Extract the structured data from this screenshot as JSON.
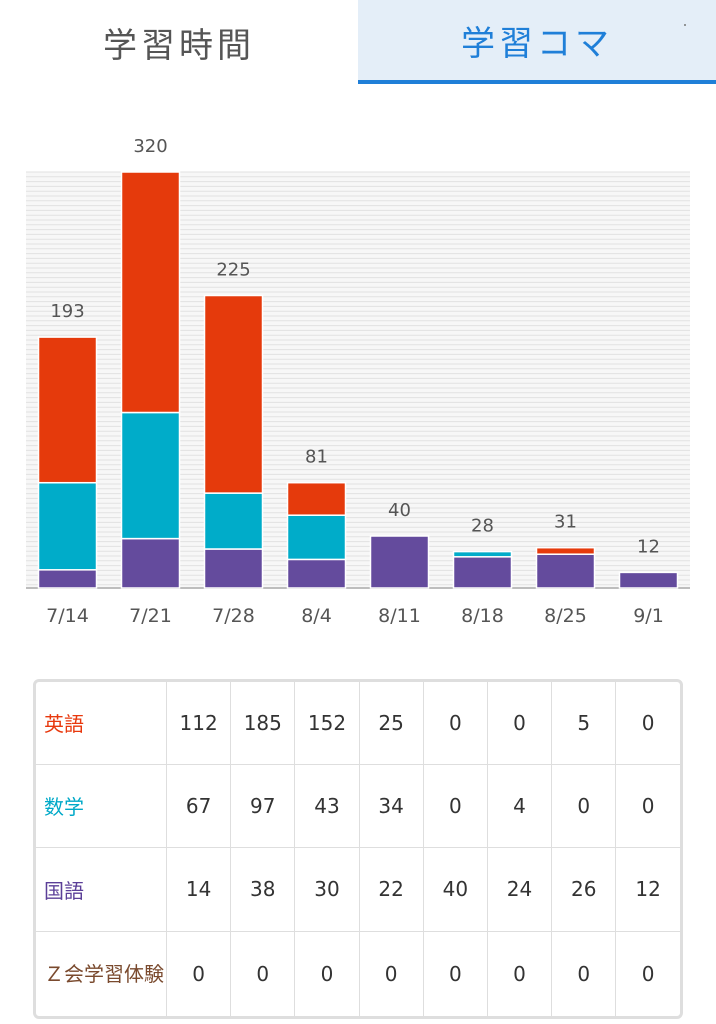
{
  "tabs": [
    {
      "label": "学習時間",
      "active": false
    },
    {
      "label": "学習コマ",
      "active": true
    }
  ],
  "colors": {
    "english": "#e53a0c",
    "math": "#00acc9",
    "japanese": "#644b9d",
    "accent": "#1f7fd8"
  },
  "chart_data": {
    "type": "bar",
    "stacked": true,
    "categories": [
      "7/14",
      "7/21",
      "7/28",
      "8/4",
      "8/11",
      "8/18",
      "8/25",
      "9/1"
    ],
    "totals": [
      193,
      320,
      225,
      81,
      40,
      28,
      31,
      12
    ],
    "series": [
      {
        "name": "国語",
        "color": "#644b9d",
        "values": [
          14,
          38,
          30,
          22,
          40,
          24,
          26,
          12
        ]
      },
      {
        "name": "数学",
        "color": "#00acc9",
        "values": [
          67,
          97,
          43,
          34,
          0,
          4,
          0,
          0
        ]
      },
      {
        "name": "英語",
        "color": "#e53a0c",
        "values": [
          112,
          185,
          152,
          25,
          0,
          0,
          5,
          0
        ]
      },
      {
        "name": "Ｚ会学習体験",
        "color": "#8a5a3a",
        "values": [
          0,
          0,
          0,
          0,
          0,
          0,
          0,
          0
        ]
      }
    ],
    "ylim": [
      0,
      320
    ],
    "grid": true,
    "legend": "none"
  },
  "table": {
    "rows": [
      {
        "label": "英語",
        "key": "english",
        "values": [
          112,
          185,
          152,
          25,
          0,
          0,
          5,
          0
        ]
      },
      {
        "label": "数学",
        "key": "math",
        "values": [
          67,
          97,
          43,
          34,
          0,
          4,
          0,
          0
        ]
      },
      {
        "label": "国語",
        "key": "jpn",
        "values": [
          14,
          38,
          30,
          22,
          40,
          24,
          26,
          12
        ]
      },
      {
        "label": "Ｚ会学習体験",
        "key": "z",
        "values": [
          0,
          0,
          0,
          0,
          0,
          0,
          0,
          0
        ]
      }
    ]
  }
}
